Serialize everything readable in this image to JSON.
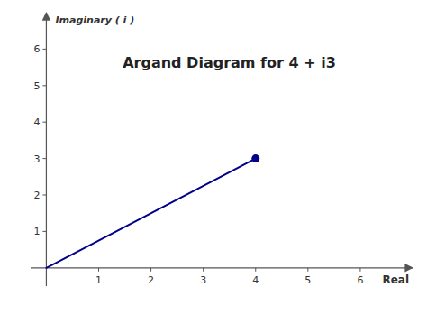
{
  "chart_data": {
    "type": "line",
    "title": "Argand Diagram for 4 + i3",
    "xlabel": "Real",
    "ylabel": "Imaginary ( i )",
    "series": [
      {
        "type": "line",
        "color": "#00008B",
        "x": [
          0,
          4
        ],
        "values": [
          0,
          3
        ]
      },
      {
        "type": "scatter",
        "color": "#00008B",
        "marker": "circle",
        "x": [
          4
        ],
        "values": [
          3
        ]
      }
    ],
    "xlim": [
      -0.3,
      7
    ],
    "ylim": [
      -0.5,
      7
    ],
    "xticks": [
      1,
      2,
      3,
      4,
      5,
      6
    ],
    "yticks": [
      1,
      2,
      3,
      4,
      5,
      6
    ],
    "grid": false
  }
}
